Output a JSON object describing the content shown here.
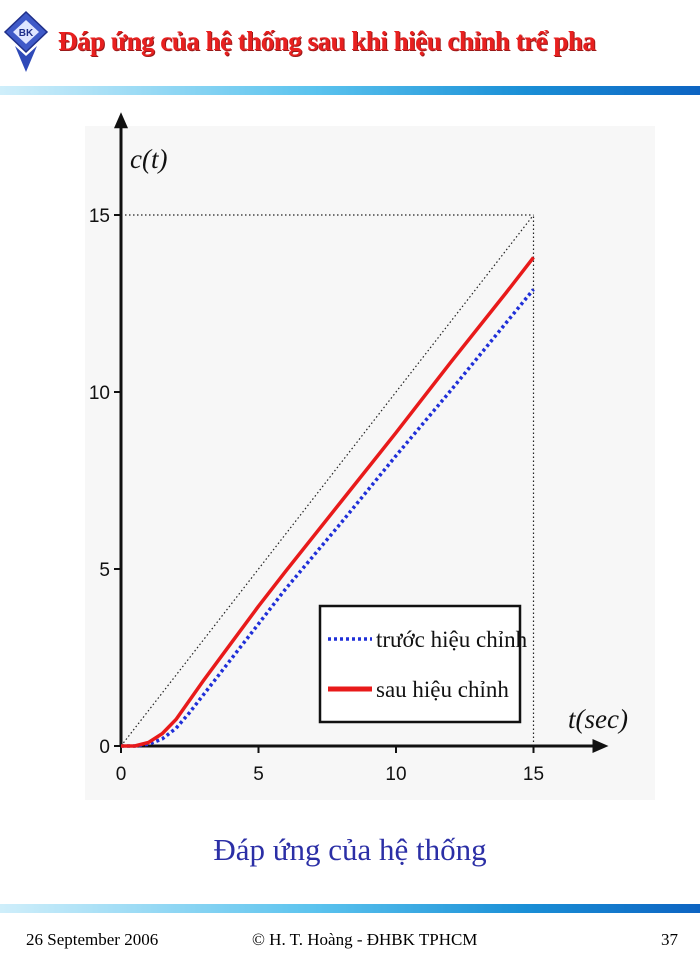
{
  "header": {
    "logo_text": "BK",
    "title": "Đáp ứng của hệ thống sau khi hiệu chỉnh trể pha"
  },
  "caption": "Đáp ứng của hệ thống",
  "footer": {
    "date": "26 September 2006",
    "author": "© H. T. Hoàng -  ĐHBK TPHCM",
    "page": "37"
  },
  "colors": {
    "title": "#e8201f",
    "caption": "#2b2fa6",
    "before_series": "#1f2fd8",
    "after_series": "#e81a1a"
  },
  "chart_data": {
    "type": "line",
    "title": "",
    "xlabel": "t(sec)",
    "ylabel": "c(t)",
    "xlim": [
      0,
      17
    ],
    "ylim": [
      0,
      17
    ],
    "xticks": [
      "0",
      "5",
      "10",
      "15"
    ],
    "yticks": [
      "0",
      "5",
      "10",
      "15"
    ],
    "reference_lines": [
      {
        "style": "dotted",
        "points": [
          [
            0,
            0
          ],
          [
            15,
            15
          ]
        ]
      },
      {
        "style": "dotted",
        "points": [
          [
            0,
            15
          ],
          [
            15,
            15
          ]
        ]
      },
      {
        "style": "dotted",
        "points": [
          [
            15,
            0
          ],
          [
            15,
            15
          ]
        ]
      }
    ],
    "series": [
      {
        "name": "trước hiệu chỉnh",
        "style": "dotted",
        "x": [
          0,
          0.5,
          1,
          1.5,
          2,
          2.5,
          3,
          4,
          5,
          6,
          8,
          10,
          12,
          14,
          15
        ],
        "y": [
          0,
          0,
          0.05,
          0.2,
          0.5,
          0.95,
          1.45,
          2.45,
          3.45,
          4.45,
          6.3,
          8.2,
          10.05,
          11.95,
          12.9
        ]
      },
      {
        "name": "sau hiệu chỉnh",
        "style": "solid",
        "x": [
          0,
          0.5,
          1,
          1.5,
          2,
          2.5,
          3,
          4,
          5,
          6,
          8,
          10,
          12,
          14,
          15
        ],
        "y": [
          0,
          0,
          0.1,
          0.35,
          0.75,
          1.3,
          1.85,
          2.9,
          3.95,
          4.95,
          6.9,
          8.85,
          10.85,
          12.8,
          13.8
        ]
      }
    ],
    "legend": {
      "position": "bottom-right"
    },
    "grid": false
  }
}
